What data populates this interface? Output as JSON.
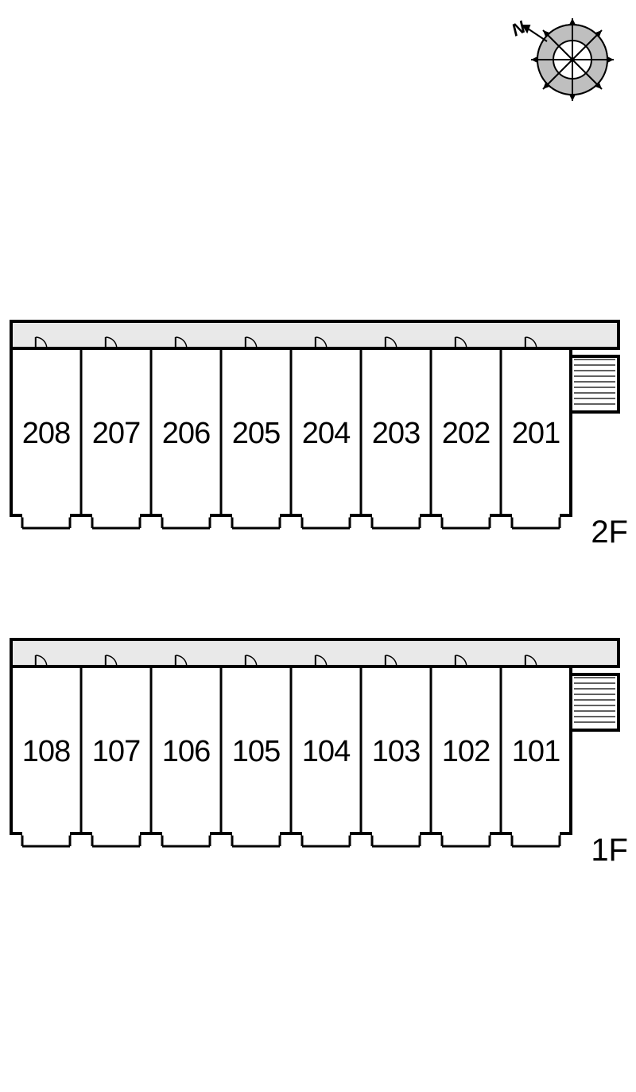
{
  "compass": {
    "label": "N",
    "rotation_deg": -35,
    "outer_stroke": "#000000",
    "ring_fill": "#bfbfbf",
    "inner_fill": "#ffffff",
    "arrow_stroke": "#000000",
    "n_font_size": 22
  },
  "diagram": {
    "background_color": "#ffffff",
    "wall_stroke": "#000000",
    "wall_stroke_width_outer": 4,
    "wall_stroke_width_inner": 3,
    "corridor_fill": "#e9e9e9",
    "unit_fill": "#ffffff",
    "unit_width": 88,
    "unit_height": 210,
    "corridor_height": 34,
    "units_per_floor": 8,
    "label_font_size": 38,
    "label_color": "#000000"
  },
  "floors": [
    {
      "id": "2F",
      "label": "2F",
      "units": [
        "208",
        "207",
        "206",
        "205",
        "204",
        "203",
        "202",
        "201"
      ]
    },
    {
      "id": "1F",
      "label": "1F",
      "units": [
        "108",
        "107",
        "106",
        "105",
        "104",
        "103",
        "102",
        "101"
      ]
    }
  ]
}
